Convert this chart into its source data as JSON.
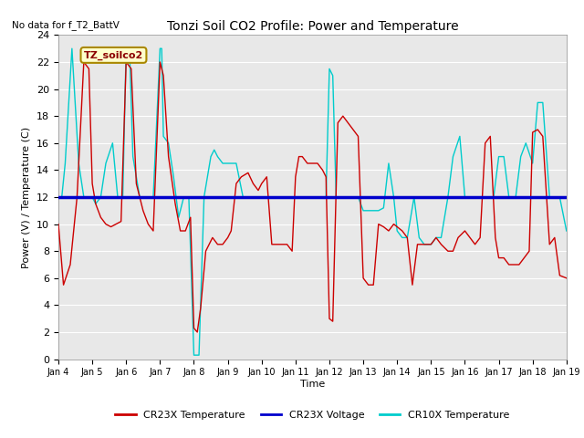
{
  "title": "Tonzi Soil CO2 Profile: Power and Temperature",
  "no_data_text": "No data for f_T2_BattV",
  "ylabel": "Power (V) / Temperature (C)",
  "xlabel": "Time",
  "ylim": [
    0,
    24
  ],
  "bg_color": "#ffffff",
  "plot_bg_color": "#e8e8e8",
  "annotation_text": "TZ_soilco2",
  "annotation_bg": "#ffffcc",
  "annotation_border": "#cccc00",
  "legend_labels": [
    "CR23X Temperature",
    "CR23X Voltage",
    "CR10X Temperature"
  ],
  "legend_colors": [
    "#cc0000",
    "#0000cc",
    "#00cccc"
  ],
  "voltage_value": 12.0,
  "xtick_labels": [
    "Jan 4",
    "Jan 5",
    "Jan 6",
    "Jan 7",
    "Jan 8",
    "Jan 9",
    "Jan 10",
    "Jan 11",
    "Jan 12",
    "Jan 13",
    "Jan 14",
    "Jan 15",
    "Jan 16",
    "Jan 17",
    "Jan 18",
    "Jan 19"
  ],
  "cr23x_temp_x": [
    0.0,
    0.15,
    0.35,
    0.55,
    0.75,
    0.9,
    1.0,
    1.1,
    1.25,
    1.4,
    1.55,
    1.7,
    1.85,
    2.0,
    2.15,
    2.3,
    2.5,
    2.65,
    2.8,
    3.0,
    3.1,
    3.25,
    3.45,
    3.6,
    3.75,
    3.9,
    4.0,
    4.1,
    4.2,
    4.35,
    4.55,
    4.7,
    4.85,
    5.0,
    5.1,
    5.25,
    5.4,
    5.6,
    5.75,
    5.9,
    6.0,
    6.15,
    6.3,
    6.45,
    6.6,
    6.75,
    6.9,
    7.0,
    7.1,
    7.2,
    7.35,
    7.5,
    7.65,
    7.8,
    7.9,
    8.0,
    8.1,
    8.25,
    8.4,
    8.55,
    8.7,
    8.85,
    9.0,
    9.15,
    9.3,
    9.45,
    9.6,
    9.75,
    9.9,
    10.0,
    10.15,
    10.3,
    10.45,
    10.6,
    10.75,
    10.9,
    11.0,
    11.15,
    11.3,
    11.5,
    11.65,
    11.8,
    12.0,
    12.15,
    12.3,
    12.45,
    12.6,
    12.75,
    12.9,
    13.0,
    13.15,
    13.3,
    13.45,
    13.6,
    13.75,
    13.9,
    14.0,
    14.15,
    14.3,
    14.5,
    14.65,
    14.8,
    15.0
  ],
  "cr23x_temp_y": [
    10.0,
    5.5,
    7.0,
    12.0,
    22.0,
    21.5,
    13.0,
    11.5,
    10.5,
    10.0,
    9.8,
    10.0,
    10.2,
    22.0,
    21.5,
    13.0,
    11.0,
    10.0,
    9.5,
    22.0,
    21.0,
    15.0,
    11.5,
    9.5,
    9.5,
    10.5,
    2.3,
    2.0,
    3.8,
    8.0,
    9.0,
    8.5,
    8.5,
    9.0,
    9.5,
    13.0,
    13.5,
    13.8,
    13.0,
    12.5,
    13.0,
    13.5,
    8.5,
    8.5,
    8.5,
    8.5,
    8.0,
    13.5,
    15.0,
    15.0,
    14.5,
    14.5,
    14.5,
    14.0,
    13.5,
    3.0,
    2.8,
    17.5,
    18.0,
    17.5,
    17.0,
    16.5,
    6.0,
    5.5,
    5.5,
    10.0,
    9.8,
    9.5,
    10.0,
    9.8,
    9.5,
    9.0,
    5.5,
    8.5,
    8.5,
    8.5,
    8.5,
    9.0,
    8.5,
    8.0,
    8.0,
    9.0,
    9.5,
    9.0,
    8.5,
    9.0,
    16.0,
    16.5,
    9.0,
    7.5,
    7.5,
    7.0,
    7.0,
    7.0,
    7.5,
    8.0,
    16.8,
    17.0,
    16.5,
    8.5,
    9.0,
    6.2,
    6.0
  ],
  "cr10x_temp_x": [
    0.0,
    0.1,
    0.2,
    0.4,
    0.6,
    0.75,
    0.85,
    1.0,
    1.1,
    1.25,
    1.4,
    1.6,
    1.75,
    1.9,
    2.0,
    2.1,
    2.2,
    2.4,
    2.6,
    2.8,
    3.0,
    3.05,
    3.1,
    3.25,
    3.4,
    3.55,
    3.7,
    3.85,
    4.0,
    4.05,
    4.1,
    4.15,
    4.3,
    4.5,
    4.6,
    4.7,
    4.85,
    5.0,
    5.1,
    5.25,
    5.45,
    5.6,
    5.75,
    5.9,
    6.0,
    6.15,
    6.3,
    6.45,
    6.6,
    6.75,
    6.9,
    7.0,
    7.15,
    7.3,
    7.5,
    7.65,
    7.8,
    7.9,
    8.0,
    8.1,
    8.2,
    8.35,
    8.55,
    8.7,
    8.85,
    9.0,
    9.15,
    9.3,
    9.45,
    9.6,
    9.75,
    9.9,
    10.0,
    10.15,
    10.3,
    10.5,
    10.65,
    10.8,
    11.0,
    11.15,
    11.3,
    11.5,
    11.65,
    11.85,
    12.0,
    12.1,
    12.25,
    12.4,
    12.55,
    12.7,
    12.85,
    13.0,
    13.15,
    13.3,
    13.5,
    13.65,
    13.8,
    14.0,
    14.15,
    14.3,
    14.5,
    14.65,
    14.8,
    15.0
  ],
  "cr10x_temp_y": [
    12.0,
    12.0,
    14.5,
    23.0,
    14.5,
    12.0,
    12.0,
    12.0,
    11.5,
    12.0,
    14.5,
    16.0,
    12.0,
    12.0,
    23.0,
    23.0,
    15.0,
    12.0,
    12.0,
    12.0,
    23.0,
    23.0,
    16.5,
    16.0,
    13.5,
    10.5,
    12.0,
    12.0,
    0.3,
    0.3,
    0.3,
    0.3,
    12.0,
    15.0,
    15.5,
    15.0,
    14.5,
    14.5,
    14.5,
    14.5,
    12.0,
    12.0,
    12.0,
    12.0,
    12.0,
    12.0,
    12.0,
    12.0,
    12.0,
    12.0,
    12.0,
    12.0,
    12.0,
    12.0,
    12.0,
    12.0,
    12.0,
    12.0,
    21.5,
    21.0,
    12.0,
    12.0,
    12.0,
    12.0,
    12.0,
    11.0,
    11.0,
    11.0,
    11.0,
    11.2,
    14.5,
    12.0,
    9.5,
    9.0,
    9.0,
    12.0,
    9.0,
    8.5,
    8.5,
    9.0,
    9.0,
    12.0,
    15.0,
    16.5,
    12.0,
    12.0,
    12.0,
    12.0,
    12.0,
    12.0,
    12.0,
    15.0,
    15.0,
    12.0,
    12.0,
    15.0,
    16.0,
    14.5,
    19.0,
    19.0,
    12.0,
    12.0,
    12.0,
    9.5
  ]
}
